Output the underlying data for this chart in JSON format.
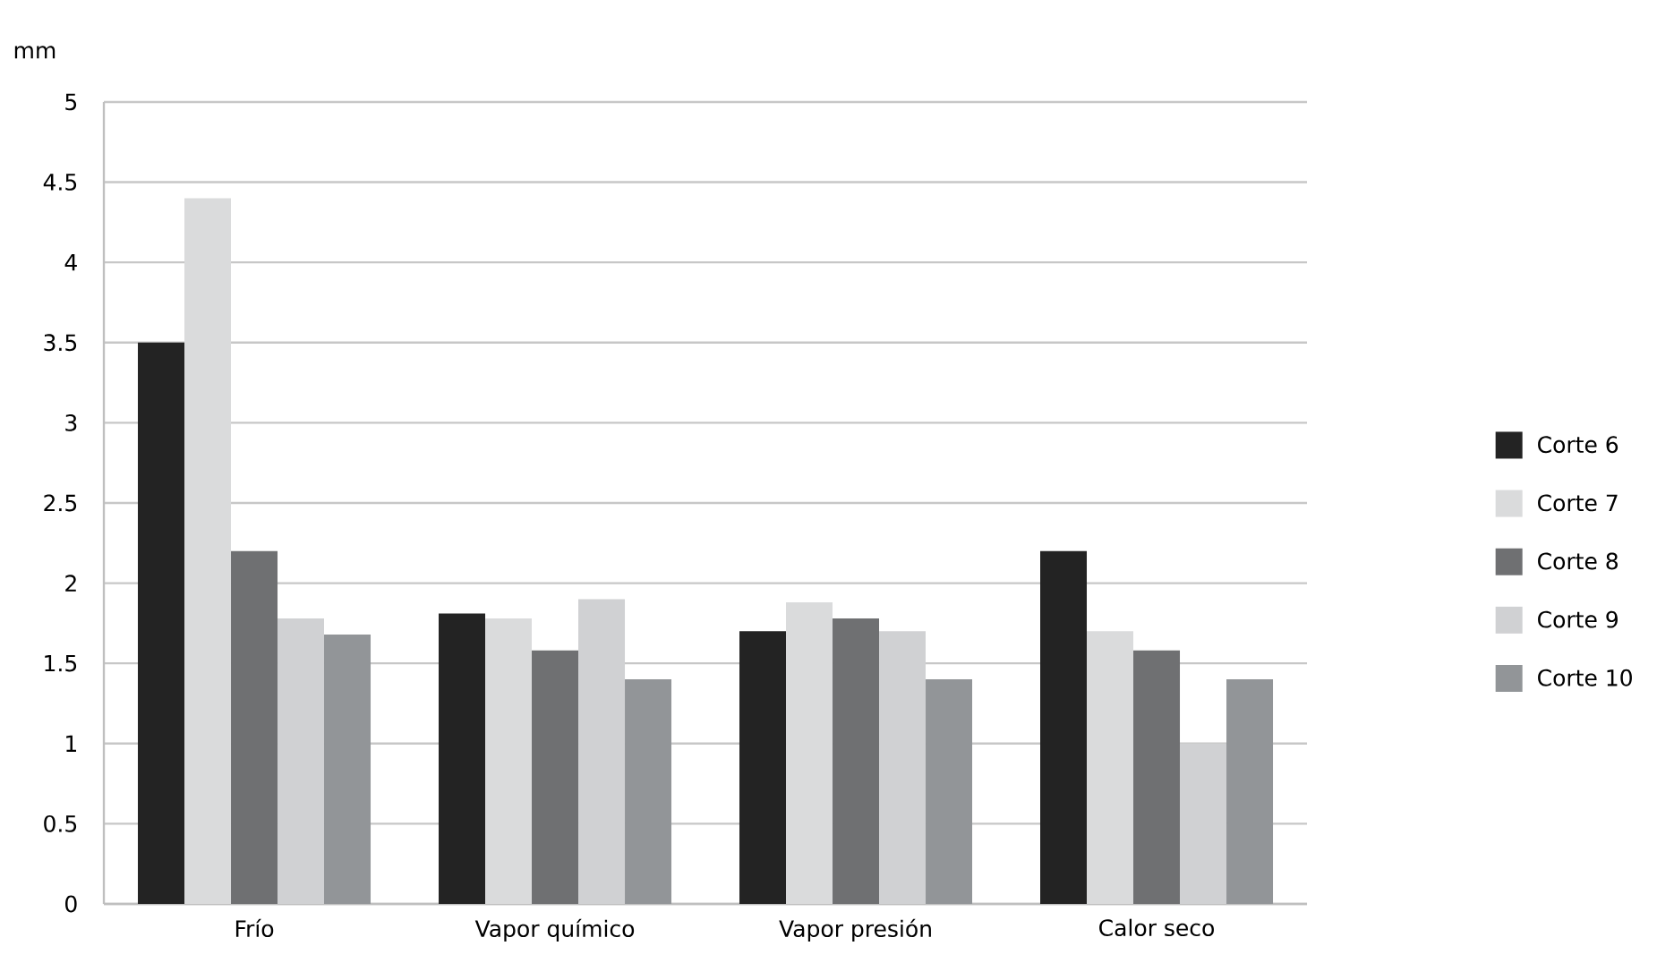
{
  "chart_data": {
    "type": "bar",
    "ylabel": "mm",
    "categories": [
      "Frío",
      "Vapor químico",
      "Vapor presión",
      "Calor seco"
    ],
    "series": [
      {
        "name": "Corte 6",
        "color": "#232323",
        "values": [
          3.5,
          1.81,
          1.7,
          2.2
        ]
      },
      {
        "name": "Corte 7",
        "color": "#dadbdc",
        "values": [
          4.4,
          1.78,
          1.88,
          1.7
        ]
      },
      {
        "name": "Corte 8",
        "color": "#6f7072",
        "values": [
          2.2,
          1.58,
          1.78,
          1.58
        ]
      },
      {
        "name": "Corte 9",
        "color": "#d0d1d3",
        "values": [
          1.78,
          1.9,
          1.7,
          1.0
        ]
      },
      {
        "name": "Corte 10",
        "color": "#929598",
        "values": [
          1.68,
          1.4,
          1.4,
          1.4
        ]
      }
    ],
    "ylim": [
      0,
      5
    ],
    "yticks": [
      0,
      0.5,
      1,
      1.5,
      2,
      2.5,
      3,
      3.5,
      4,
      4.5,
      5
    ],
    "grid": "y",
    "legend": "right"
  }
}
